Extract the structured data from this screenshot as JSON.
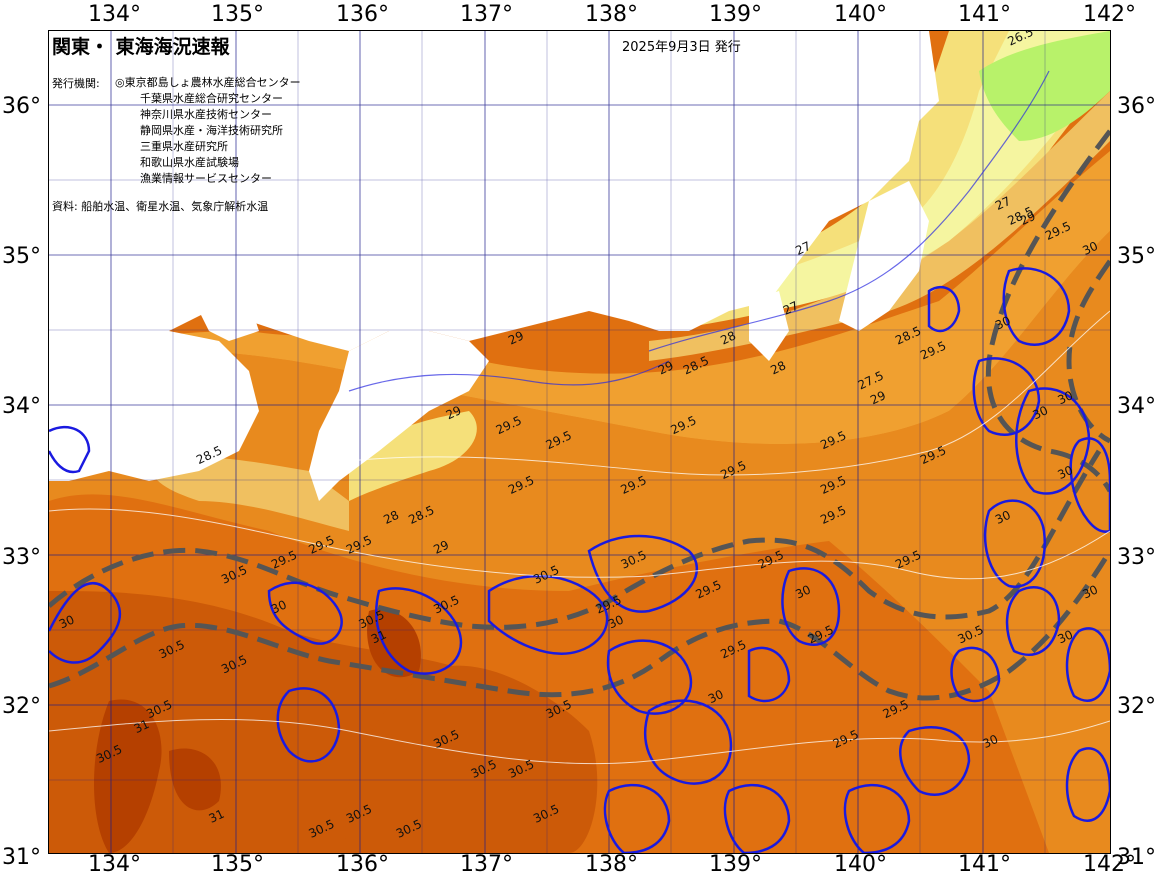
{
  "map": {
    "title": "関東・ 東海海況速報",
    "issue_date": "2025年9月3日 発行",
    "issuer_label": "発行機関:",
    "issuers": [
      "◎東京都島しょ農林水産総合センター",
      "千葉県水産総合研究センター",
      "神奈川県水産技術センター",
      "静岡県水産・海洋技術研究所",
      "三重県水産研究所",
      "和歌山県水産試験場",
      "漁業情報サービスセンター"
    ],
    "source": "資料: 船舶水温、衛星水温、気象庁解析水温"
  },
  "axes": {
    "lon_labels": [
      "134°",
      "135°",
      "136°",
      "137°",
      "138°",
      "139°",
      "140°",
      "141°",
      "142°"
    ],
    "lat_labels": [
      "36°",
      "35°",
      "34°",
      "33°",
      "32°",
      "31°"
    ],
    "lon_range": [
      133.5,
      142.0
    ],
    "lat_range": [
      31.0,
      36.5
    ]
  },
  "colors": {
    "land": "#ffffff",
    "temp_26_5": "#b8f26a",
    "temp_27": "#f5f5a0",
    "temp_28": "#f5e07a",
    "temp_28_5": "#f0c060",
    "temp_29": "#f0a030",
    "temp_29_5": "#e88a1e",
    "temp_30": "#e07010",
    "temp_30_5": "#cc5a08",
    "temp_31": "#b54000",
    "isotherm_30": "#1a1ae0",
    "current_line": "#555555",
    "grid": "#1a1a8a"
  },
  "isotherm_labels": [
    {
      "text": "26.5",
      "lon": 141.2,
      "lat": 36.4
    },
    {
      "text": "27",
      "lon": 141.1,
      "lat": 35.3
    },
    {
      "text": "28.5",
      "lon": 141.2,
      "lat": 35.2
    },
    {
      "text": "29",
      "lon": 141.3,
      "lat": 35.2
    },
    {
      "text": "29.5",
      "lon": 141.5,
      "lat": 35.1
    },
    {
      "text": "30",
      "lon": 141.8,
      "lat": 35.0
    },
    {
      "text": "27",
      "lon": 139.5,
      "lat": 35.0
    },
    {
      "text": "27",
      "lon": 139.4,
      "lat": 34.6
    },
    {
      "text": "28",
      "lon": 138.9,
      "lat": 34.4
    },
    {
      "text": "28",
      "lon": 139.3,
      "lat": 34.2
    },
    {
      "text": "28.5",
      "lon": 138.6,
      "lat": 34.2
    },
    {
      "text": "29",
      "lon": 138.4,
      "lat": 34.2
    },
    {
      "text": "29",
      "lon": 137.2,
      "lat": 34.4
    },
    {
      "text": "29",
      "lon": 136.7,
      "lat": 33.9
    },
    {
      "text": "27.5",
      "lon": 140.0,
      "lat": 34.1
    },
    {
      "text": "29",
      "lon": 140.1,
      "lat": 34.0
    },
    {
      "text": "28.5",
      "lon": 140.3,
      "lat": 34.4
    },
    {
      "text": "29.5",
      "lon": 140.5,
      "lat": 34.3
    },
    {
      "text": "29.5",
      "lon": 137.1,
      "lat": 33.8
    },
    {
      "text": "29.5",
      "lon": 137.5,
      "lat": 33.7
    },
    {
      "text": "29.5",
      "lon": 138.5,
      "lat": 33.8
    },
    {
      "text": "29.5",
      "lon": 138.9,
      "lat": 33.5
    },
    {
      "text": "29.5",
      "lon": 139.7,
      "lat": 33.7
    },
    {
      "text": "29.5",
      "lon": 137.2,
      "lat": 33.4
    },
    {
      "text": "29.5",
      "lon": 138.1,
      "lat": 33.4
    },
    {
      "text": "29.5",
      "lon": 139.7,
      "lat": 33.4
    },
    {
      "text": "29.5",
      "lon": 139.7,
      "lat": 33.2
    },
    {
      "text": "29.5",
      "lon": 140.5,
      "lat": 33.6
    },
    {
      "text": "28.5",
      "lon": 134.7,
      "lat": 33.6
    },
    {
      "text": "28",
      "lon": 136.2,
      "lat": 33.2
    },
    {
      "text": "28.5",
      "lon": 136.4,
      "lat": 33.2
    },
    {
      "text": "29",
      "lon": 136.6,
      "lat": 33.0
    },
    {
      "text": "29.5",
      "lon": 135.3,
      "lat": 32.9
    },
    {
      "text": "29.5",
      "lon": 135.6,
      "lat": 33.0
    },
    {
      "text": "29.5",
      "lon": 135.9,
      "lat": 33.0
    },
    {
      "text": "30.5",
      "lon": 134.9,
      "lat": 32.8
    },
    {
      "text": "30",
      "lon": 135.3,
      "lat": 32.6
    },
    {
      "text": "30",
      "lon": 133.6,
      "lat": 32.5
    },
    {
      "text": "30.5",
      "lon": 134.4,
      "lat": 32.3
    },
    {
      "text": "30.5",
      "lon": 134.3,
      "lat": 31.9
    },
    {
      "text": "31",
      "lon": 134.2,
      "lat": 31.8
    },
    {
      "text": "30.5",
      "lon": 133.9,
      "lat": 31.6
    },
    {
      "text": "30.5",
      "lon": 134.9,
      "lat": 32.2
    },
    {
      "text": "31",
      "lon": 136.1,
      "lat": 32.4
    },
    {
      "text": "30.5",
      "lon": 136.0,
      "lat": 32.5
    },
    {
      "text": "30.5",
      "lon": 136.6,
      "lat": 32.6
    },
    {
      "text": "30.5",
      "lon": 137.4,
      "lat": 32.8
    },
    {
      "text": "30.5",
      "lon": 138.1,
      "lat": 32.9
    },
    {
      "text": "30",
      "lon": 138.0,
      "lat": 32.5
    },
    {
      "text": "29.5",
      "lon": 137.9,
      "lat": 32.6
    },
    {
      "text": "29.5",
      "lon": 138.7,
      "lat": 32.7
    },
    {
      "text": "29.5",
      "lon": 139.2,
      "lat": 32.9
    },
    {
      "text": "30",
      "lon": 139.5,
      "lat": 32.7
    },
    {
      "text": "29.5",
      "lon": 138.9,
      "lat": 32.3
    },
    {
      "text": "29.5",
      "lon": 139.6,
      "lat": 32.4
    },
    {
      "text": "29.5",
      "lon": 140.3,
      "lat": 32.9
    },
    {
      "text": "30.5",
      "lon": 140.8,
      "lat": 32.4
    },
    {
      "text": "30.5",
      "lon": 137.5,
      "lat": 31.9
    },
    {
      "text": "30",
      "lon": 138.8,
      "lat": 32.0
    },
    {
      "text": "30.5",
      "lon": 136.6,
      "lat": 31.7
    },
    {
      "text": "30.5",
      "lon": 136.9,
      "lat": 31.5
    },
    {
      "text": "30.5",
      "lon": 137.2,
      "lat": 31.5
    },
    {
      "text": "30.5",
      "lon": 137.4,
      "lat": 31.2
    },
    {
      "text": "30.5",
      "lon": 135.9,
      "lat": 31.2
    },
    {
      "text": "30.5",
      "lon": 136.3,
      "lat": 31.1
    },
    {
      "text": "30.5",
      "lon": 135.6,
      "lat": 31.1
    },
    {
      "text": "31",
      "lon": 134.8,
      "lat": 31.2
    },
    {
      "text": "30.5",
      "lon": 134.9,
      "lat": 30.8
    },
    {
      "text": "31",
      "lon": 133.9,
      "lat": 30.9
    },
    {
      "text": "29.5",
      "lon": 139.8,
      "lat": 31.7
    },
    {
      "text": "29.5",
      "lon": 140.2,
      "lat": 31.9
    },
    {
      "text": "30",
      "lon": 141.0,
      "lat": 31.7
    },
    {
      "text": "30",
      "lon": 141.1,
      "lat": 33.2
    },
    {
      "text": "30",
      "lon": 141.4,
      "lat": 33.9
    },
    {
      "text": "30",
      "lon": 141.6,
      "lat": 34.0
    },
    {
      "text": "30",
      "lon": 141.1,
      "lat": 34.5
    },
    {
      "text": "30",
      "lon": 141.6,
      "lat": 33.5
    },
    {
      "text": "30",
      "lon": 141.8,
      "lat": 32.7
    },
    {
      "text": "30",
      "lon": 141.6,
      "lat": 32.4
    }
  ]
}
